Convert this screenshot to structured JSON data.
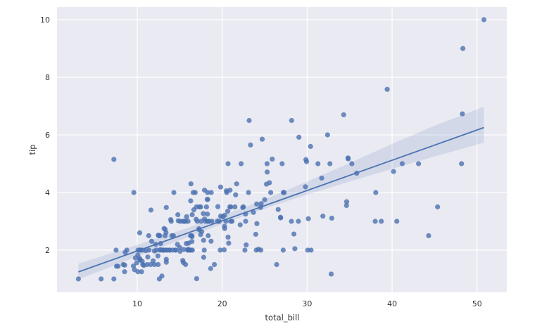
{
  "chart_data": {
    "type": "scatter",
    "title": "",
    "xlabel": "total_bill",
    "ylabel": "tip",
    "xlim": [
      1.5,
      53.5
    ],
    "ylim": [
      0.5,
      10.45
    ],
    "xticks": [
      10,
      20,
      30,
      40,
      50
    ],
    "yticks": [
      2,
      4,
      6,
      8,
      10
    ],
    "grid": true,
    "style": "seaborn darkgrid",
    "colors": {
      "background": "#eaeaf2",
      "grid": "#ffffff",
      "points": "#4c72b0",
      "line": "#4c72b0",
      "ci_band": "#4c72b0"
    },
    "regression": {
      "slope": 0.105,
      "intercept": 0.9203,
      "x_range": [
        3.07,
        50.81
      ],
      "ci": 95
    },
    "ci_band": {
      "x": [
        3.07,
        10,
        15,
        20,
        25,
        30,
        35,
        40,
        45,
        50.81
      ],
      "lower": [
        0.98,
        1.78,
        2.34,
        2.91,
        3.44,
        3.93,
        4.38,
        4.82,
        5.25,
        5.73
      ],
      "upper": [
        1.53,
        2.18,
        2.68,
        3.19,
        3.76,
        4.38,
        5.02,
        5.69,
        6.32,
        6.98
      ]
    },
    "x": [
      16.99,
      10.34,
      21.01,
      23.68,
      24.59,
      25.29,
      8.77,
      26.88,
      15.04,
      14.78,
      10.27,
      35.26,
      15.42,
      18.43,
      14.83,
      21.58,
      10.33,
      16.29,
      16.97,
      20.65,
      17.92,
      20.29,
      15.77,
      39.42,
      19.82,
      17.81,
      13.37,
      12.69,
      21.7,
      19.65,
      9.55,
      18.35,
      15.06,
      20.69,
      17.78,
      24.06,
      16.31,
      16.93,
      18.69,
      31.27,
      16.04,
      17.46,
      13.94,
      9.68,
      30.4,
      18.29,
      22.23,
      32.4,
      28.55,
      18.04,
      12.54,
      10.29,
      34.81,
      9.94,
      25.56,
      19.49,
      38.01,
      26.41,
      11.24,
      48.27,
      20.29,
      13.81,
      11.02,
      18.29,
      17.59,
      20.08,
      16.45,
      3.07,
      20.23,
      15.01,
      12.02,
      17.07,
      26.86,
      25.28,
      14.73,
      10.51,
      17.92,
      27.2,
      22.76,
      17.29,
      19.44,
      16.66,
      10.07,
      32.68,
      15.98,
      34.83,
      13.03,
      18.28,
      24.71,
      21.16,
      28.97,
      22.49,
      5.75,
      16.32,
      22.75,
      40.17,
      27.28,
      12.03,
      21.01,
      12.46,
      11.35,
      15.38,
      44.3,
      22.42,
      20.92,
      15.36,
      20.49,
      25.21,
      18.24,
      14.31,
      14.0,
      7.25,
      38.07,
      23.95,
      25.71,
      17.31,
      29.93,
      10.65,
      12.43,
      24.08,
      11.69,
      13.42,
      14.26,
      15.95,
      12.48,
      29.8,
      8.52,
      14.52,
      11.38,
      22.82,
      19.08,
      20.27,
      11.17,
      12.26,
      18.26,
      8.51,
      10.33,
      14.15,
      16.0,
      13.16,
      17.47,
      34.3,
      41.19,
      27.05,
      16.43,
      8.35,
      18.64,
      11.87,
      9.78,
      7.51,
      14.07,
      13.13,
      17.26,
      24.55,
      19.77,
      29.85,
      48.17,
      25.0,
      13.39,
      16.49,
      21.5,
      12.66,
      16.21,
      13.81,
      17.51,
      24.52,
      20.76,
      31.71,
      10.59,
      10.63,
      50.81,
      15.81,
      7.25,
      31.85,
      16.82,
      32.9,
      17.89,
      14.48,
      9.6,
      34.63,
      34.65,
      23.33,
      45.35,
      23.17,
      40.55,
      20.69,
      20.9,
      30.46,
      18.15,
      23.1,
      15.69,
      19.81,
      28.44,
      15.48,
      16.58,
      7.56,
      10.34,
      43.11,
      13.0,
      13.51,
      18.71,
      12.74,
      13.0,
      16.4,
      20.53,
      16.47,
      26.59,
      38.73,
      24.27,
      12.76,
      30.06,
      25.89,
      48.33,
      13.27,
      28.17,
      12.9,
      28.15,
      11.59,
      7.74,
      30.14,
      12.16,
      13.42,
      8.58,
      15.98,
      13.42,
      16.27,
      10.09,
      20.45,
      13.28,
      22.12,
      24.01,
      15.69,
      11.61,
      10.77,
      15.53,
      10.07,
      12.6,
      32.83,
      35.83,
      29.03,
      27.18,
      22.67,
      17.82,
      18.78
    ],
    "y": [
      1.01,
      1.66,
      3.5,
      3.31,
      3.61,
      4.71,
      2.0,
      3.12,
      1.96,
      3.23,
      1.71,
      5.0,
      1.57,
      3.0,
      3.02,
      3.92,
      1.67,
      3.71,
      3.5,
      3.35,
      4.08,
      2.75,
      2.23,
      7.58,
      3.18,
      2.34,
      2.0,
      2.0,
      4.3,
      3.0,
      1.45,
      2.5,
      3.0,
      2.45,
      3.27,
      3.6,
      2.0,
      3.07,
      2.31,
      5.0,
      2.24,
      2.54,
      3.06,
      1.32,
      5.6,
      3.0,
      5.0,
      6.0,
      2.05,
      3.0,
      2.5,
      2.6,
      5.2,
      1.56,
      4.34,
      3.51,
      3.0,
      1.5,
      1.76,
      6.73,
      3.21,
      2.0,
      1.98,
      3.76,
      2.64,
      3.15,
      2.47,
      1.0,
      2.01,
      2.09,
      1.97,
      3.0,
      3.14,
      5.0,
      2.2,
      1.25,
      3.08,
      4.0,
      3.0,
      2.71,
      3.0,
      3.4,
      1.83,
      5.0,
      2.03,
      5.17,
      2.0,
      4.0,
      5.85,
      3.0,
      3.0,
      3.5,
      1.0,
      4.3,
      3.25,
      4.73,
      4.0,
      1.5,
      3.0,
      1.5,
      2.5,
      3.0,
      2.5,
      3.48,
      4.08,
      1.64,
      4.06,
      4.29,
      3.76,
      4.0,
      3.0,
      1.0,
      4.0,
      2.55,
      4.0,
      3.5,
      5.07,
      1.5,
      1.8,
      2.92,
      2.31,
      1.68,
      2.5,
      2.0,
      2.52,
      4.2,
      1.48,
      2.0,
      2.0,
      2.18,
      1.5,
      2.83,
      1.5,
      2.0,
      3.25,
      1.25,
      2.0,
      2.0,
      2.0,
      2.75,
      3.5,
      6.7,
      5.0,
      5.0,
      2.3,
      1.5,
      1.36,
      1.63,
      1.73,
      2.0,
      2.5,
      2.0,
      2.74,
      2.0,
      2.0,
      5.14,
      5.0,
      3.75,
      2.61,
      2.0,
      3.5,
      2.5,
      2.0,
      2.0,
      3.0,
      3.48,
      2.24,
      4.5,
      1.61,
      2.0,
      10.0,
      3.16,
      5.15,
      3.18,
      4.0,
      3.11,
      2.0,
      2.0,
      4.0,
      3.55,
      3.68,
      5.65,
      3.5,
      6.5,
      3.0,
      5.0,
      3.5,
      2.0,
      3.5,
      4.0,
      1.5,
      4.19,
      2.56,
      2.02,
      4.0,
      1.44,
      2.0,
      5.0,
      2.0,
      2.0,
      4.0,
      2.01,
      2.0,
      2.5,
      4.0,
      3.23,
      3.41,
      3.0,
      2.03,
      2.23,
      2.0,
      5.16,
      9.0,
      2.5,
      6.5,
      1.1,
      3.0,
      1.5,
      1.44,
      3.09,
      2.2,
      3.48,
      1.92,
      3.0,
      1.58,
      2.5,
      2.0,
      3.0,
      2.72,
      2.88,
      2.0,
      3.0,
      3.39,
      1.47,
      3.0,
      1.25,
      1.0,
      1.17,
      4.67,
      5.92,
      2.0,
      2.0,
      1.75,
      3.0
    ]
  }
}
